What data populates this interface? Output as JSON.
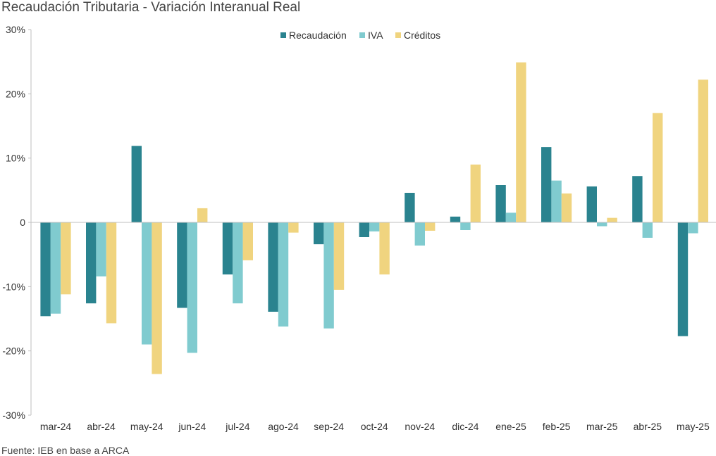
{
  "chart_data": {
    "type": "bar",
    "title": "Recaudación Tributaria - Variación Interanual Real",
    "source": "Fuente: IEB en base a ARCA",
    "xlabel": "",
    "ylabel": "",
    "ylim": [
      -30,
      30
    ],
    "yticks": [
      -30,
      -20,
      -10,
      0,
      10,
      20,
      30
    ],
    "ytick_labels": [
      "-30%",
      "-20%",
      "-10%",
      "0",
      "10%",
      "20%",
      "30%"
    ],
    "grid": false,
    "legend_position": "top-center",
    "categories": [
      "mar-24",
      "abr-24",
      "may-24",
      "jun-24",
      "jul-24",
      "ago-24",
      "sep-24",
      "oct-24",
      "nov-24",
      "dic-24",
      "ene-25",
      "feb-25",
      "mar-25",
      "abr-25",
      "may-25"
    ],
    "series": [
      {
        "name": "Recaudación",
        "color": "#2a838f",
        "values": [
          -14.6,
          -12.6,
          11.9,
          -13.3,
          -8.1,
          -13.9,
          -3.4,
          -2.3,
          4.6,
          0.9,
          5.8,
          11.7,
          5.6,
          7.2,
          -17.7
        ]
      },
      {
        "name": "IVA",
        "color": "#80cbcf",
        "values": [
          -14.2,
          -8.4,
          -19.0,
          -20.3,
          -12.6,
          -16.2,
          -16.5,
          -1.4,
          -3.6,
          -1.2,
          1.5,
          6.5,
          -0.6,
          -2.4,
          -1.7
        ]
      },
      {
        "name": "Créditos",
        "color": "#f0d47f",
        "values": [
          -11.2,
          -15.7,
          -23.6,
          2.2,
          -5.9,
          -1.6,
          -10.5,
          -8.1,
          -1.3,
          9.0,
          24.9,
          4.5,
          0.7,
          17.0,
          22.2
        ]
      }
    ]
  }
}
